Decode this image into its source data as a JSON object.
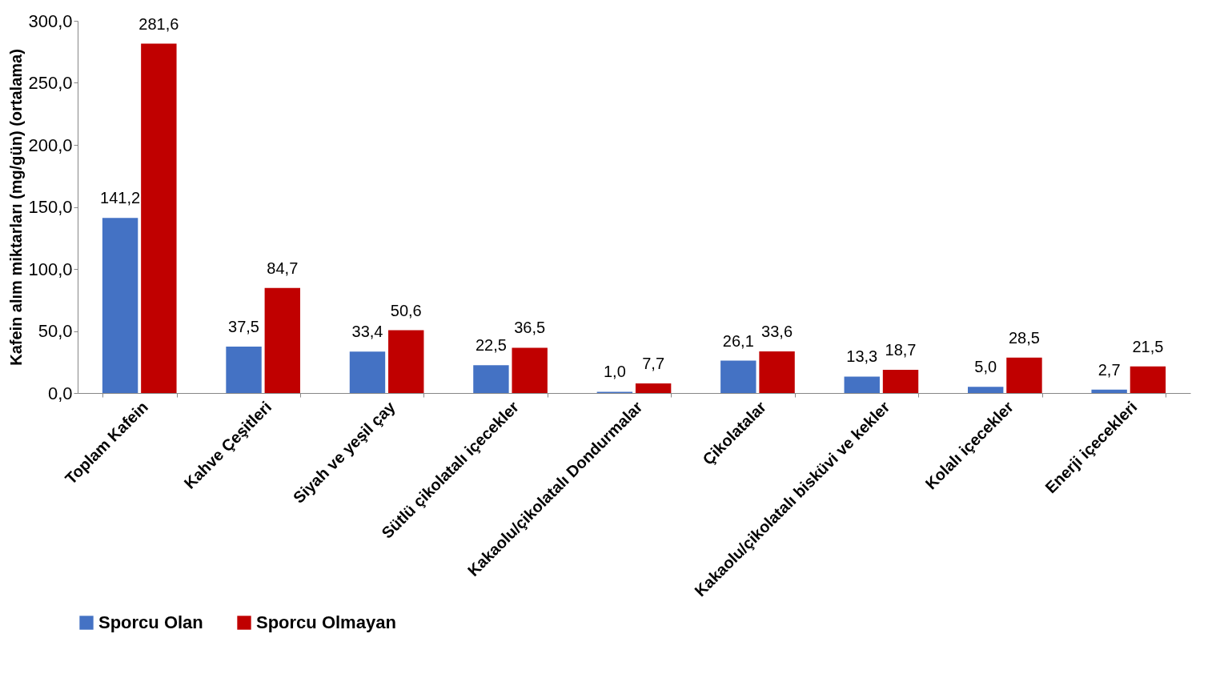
{
  "chart_data": {
    "type": "bar",
    "ylabel": "Kafein alım miktarları (mg/gün) (ortalama)",
    "categories": [
      "Toplam Kafein",
      "Kahve Çeşitleri",
      "Siyah ve yeşil çay",
      "Sütlü çikolatalı içecekler",
      "Kakaolu/çikolatalı Dondurmalar",
      "Çikolatalar",
      "Kakaolu/çikolatalı bisküvi ve kekler",
      "Kolalı içecekler",
      "Enerji içecekleri"
    ],
    "series": [
      {
        "name": "Sporcu Olan",
        "color": "#4472c4",
        "values": [
          141.2,
          37.5,
          33.4,
          22.5,
          1.0,
          26.1,
          13.3,
          5.0,
          2.7
        ],
        "value_labels": [
          "141,2",
          "37,5",
          "33,4",
          "22,5",
          "1,0",
          "26,1",
          "13,3",
          "5,0",
          "2,7"
        ]
      },
      {
        "name": "Sporcu Olmayan",
        "color": "#c00000",
        "values": [
          281.6,
          84.7,
          50.6,
          36.5,
          7.7,
          33.6,
          18.7,
          28.5,
          21.5
        ],
        "value_labels": [
          "281,6",
          "84,7",
          "50,6",
          "36,5",
          "7,7",
          "33,6",
          "18,7",
          "28,5",
          "21,5"
        ]
      }
    ],
    "ylim": [
      0,
      300
    ],
    "yticks": [
      {
        "value": 0,
        "label": "0,0"
      },
      {
        "value": 50,
        "label": "50,0"
      },
      {
        "value": 100,
        "label": "100,0"
      },
      {
        "value": 150,
        "label": "150,0"
      },
      {
        "value": 200,
        "label": "200,0"
      },
      {
        "value": 250,
        "label": "250,0"
      },
      {
        "value": 300,
        "label": "300,0"
      }
    ],
    "grid": false,
    "legend": "bottom"
  }
}
